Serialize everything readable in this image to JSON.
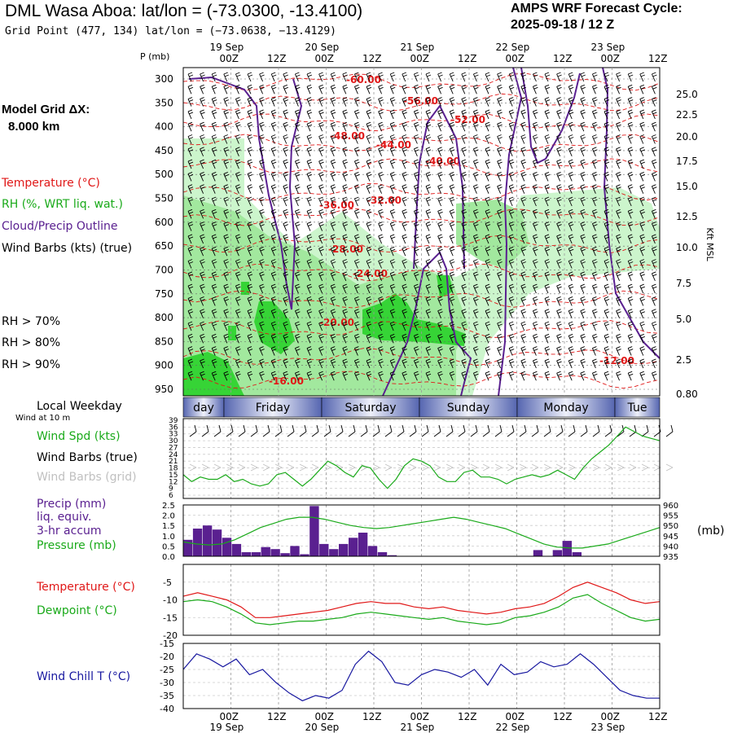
{
  "header": {
    "title": "DML Wasa Aboa:  lat/lon = (-73.0300, -13.4100)",
    "grid_point": "Grid Point (477, 134) lat/lon = (−73.0638, −13.4129)",
    "cycle_line1": "AMPS WRF Forecast Cycle:",
    "cycle_line2": "2025-09-18 / 12  Z"
  },
  "model_grid": {
    "line1": "Model Grid ΔX:",
    "line2": "8.000 km"
  },
  "profile_legend": {
    "temperature": "Temperature (°C)",
    "rh": "RH (%, WRT liq. wat.)",
    "cloud": "Cloud/Precip Outline",
    "wind": "Wind Barbs (kts) (true)",
    "rh_levels": [
      "RH > 70%",
      "RH > 80%",
      "RH > 90%"
    ]
  },
  "colors": {
    "temperature": "#e01818",
    "rh70": "#ccf5cc",
    "rh80": "#a2e89e",
    "rh90": "#36d436",
    "cloud": "#5a2090",
    "precip": "#5a2090",
    "pressure": "#1aaa1a",
    "dewpoint": "#1aaa1a",
    "windchill": "#1818a0",
    "wind_grid": "#c0c0c0",
    "day_band": "#5565b0"
  },
  "time_axis": {
    "top_hours": [
      "00Z",
      "12Z",
      "00Z",
      "12Z",
      "00Z",
      "12Z",
      "00Z",
      "12Z",
      "00Z",
      "12Z"
    ],
    "top_dates": [
      "19 Sep",
      "20 Sep",
      "21 Sep",
      "22 Sep",
      "23 Sep"
    ],
    "bottom_hours": [
      "00Z",
      "12Z",
      "00Z",
      "12Z",
      "00Z",
      "12Z",
      "00Z",
      "12Z",
      "00Z",
      "12Z"
    ],
    "bottom_dates": [
      "19 Sep",
      "20 Sep",
      "21 Sep",
      "22 Sep",
      "23 Sep"
    ],
    "start": "2025-09-18 12Z",
    "end": "2025-09-23 12Z"
  },
  "chart_data": [
    {
      "type": "heatmap",
      "title": "",
      "ylabel": "P (mb)",
      "y2label": "Kft MSL",
      "pressure_ticks": [
        300,
        350,
        400,
        450,
        500,
        550,
        600,
        650,
        700,
        750,
        800,
        850,
        900,
        950
      ],
      "height_ticks": [
        "25.0",
        "22.5",
        "20.0",
        "17.5",
        "15.0",
        "12.5",
        "10.0",
        "7.5",
        "5.0",
        "2.5",
        "0.80"
      ],
      "temperature_labels": [
        "-60.00",
        "-56.00",
        "-52.00",
        "-48.00",
        "-44.00",
        "-40.00",
        "-36.00",
        "-32.00",
        "-28.00",
        "-24.00",
        "-20.00",
        "-16.00",
        "-12.00"
      ]
    },
    {
      "type": "table",
      "label": "Local Weekday",
      "days": [
        "day",
        "Friday",
        "Saturday",
        "Sunday",
        "Monday",
        "Tue"
      ]
    },
    {
      "type": "line",
      "subtitle": "Wind at 10 m",
      "legend": [
        "Wind Spd (kts)",
        "Wind Barbs (true)",
        "Wind Barbs (grid)"
      ],
      "y_ticks": [
        6,
        9,
        12,
        15,
        18,
        21,
        24,
        27,
        30,
        33,
        36,
        39
      ],
      "ylim": [
        6,
        39
      ],
      "series": [
        {
          "values": [
            15,
            12,
            14,
            13,
            13,
            15,
            12,
            13,
            11,
            10,
            11,
            15,
            16,
            13,
            10,
            13,
            17,
            21,
            19,
            16,
            14,
            19,
            18,
            13,
            9,
            13,
            19,
            22,
            21,
            19,
            14,
            12,
            12,
            16,
            17,
            14,
            14,
            13,
            11,
            13,
            14,
            15,
            14,
            15,
            17,
            15,
            13,
            18,
            22,
            25,
            28,
            32,
            36,
            34,
            32,
            31,
            30
          ]
        }
      ]
    },
    {
      "type": "bar",
      "legend": [
        "Precip (mm)",
        "liq. equiv.",
        "3-hr accum",
        "Pressure (mb)"
      ],
      "y_ticks": [
        0.0,
        0.5,
        1.0,
        1.5,
        2.0,
        2.5
      ],
      "ylim": [
        0,
        2.5
      ],
      "y2_ticks": [
        935,
        940,
        945,
        950,
        955,
        960
      ],
      "y2lim": [
        935,
        960
      ],
      "y2label": "(mb)",
      "precip": [
        0.8,
        1.35,
        1.5,
        1.3,
        0.9,
        0.6,
        0.2,
        0.2,
        0.45,
        0.35,
        0.15,
        0.5,
        0.1,
        2.45,
        0.6,
        0.35,
        0.6,
        0.9,
        1.15,
        0.5,
        0.2,
        0.05,
        0.02,
        0.0,
        0.0,
        0.0,
        0.0,
        0.0,
        0.0,
        0.0,
        0.0,
        0.0,
        0.0,
        0.0,
        0.0,
        0.0,
        0.3,
        0.0,
        0.3,
        0.75,
        0.2,
        0.0,
        0.0,
        0.0,
        0.0,
        0.0,
        0.0,
        0.0,
        0.0
      ],
      "pressure": [
        942,
        941,
        940.5,
        941,
        943,
        946,
        949,
        951,
        953,
        954,
        954,
        953,
        951.5,
        950,
        949,
        948.5,
        949,
        950,
        951,
        952,
        953,
        954,
        953,
        951.5,
        950,
        948.5,
        946,
        943.5,
        941,
        939.5,
        939,
        939,
        940,
        941,
        943,
        945,
        947,
        949
      ]
    },
    {
      "type": "line",
      "legend": [
        "Temperature (°C)",
        "Dewpoint (°C)"
      ],
      "y_ticks": [
        -20,
        -15,
        -10,
        -5
      ],
      "ylim": [
        -20,
        0
      ],
      "series": [
        {
          "name": "Temperature (°C)",
          "values": [
            -9,
            -8,
            -9,
            -10,
            -12,
            -15,
            -15,
            -14.5,
            -14,
            -13.5,
            -13,
            -12,
            -11,
            -10.5,
            -11,
            -11,
            -12,
            -12.5,
            -12,
            -13,
            -13.5,
            -14,
            -13.5,
            -12.5,
            -12,
            -11,
            -9,
            -6.5,
            -5,
            -6.5,
            -8,
            -10,
            -11,
            -10.5
          ]
        },
        {
          "name": "Dewpoint (°C)",
          "values": [
            -10.5,
            -10,
            -10.5,
            -12,
            -14,
            -16.5,
            -17,
            -16.5,
            -16,
            -16,
            -15.5,
            -15,
            -14,
            -13.5,
            -14,
            -14.5,
            -15,
            -15.5,
            -15,
            -16,
            -16.5,
            -17,
            -16.5,
            -15,
            -14.5,
            -13.5,
            -12,
            -9.5,
            -8.5,
            -11,
            -13,
            -15,
            -16,
            -15.5
          ]
        }
      ]
    },
    {
      "type": "line",
      "legend": [
        "Wind Chill T (°C)"
      ],
      "y_ticks": [
        -40,
        -35,
        -30,
        -25,
        -20,
        -15
      ],
      "ylim": [
        -40,
        -15
      ],
      "series": [
        {
          "name": "Wind Chill T (°C)",
          "values": [
            -25,
            -19,
            -21,
            -24,
            -21,
            -27,
            -25,
            -30,
            -34,
            -37,
            -35,
            -36,
            -33,
            -23,
            -18,
            -22,
            -30,
            -31,
            -27,
            -25,
            -26,
            -28,
            -25,
            -31,
            -23,
            -27,
            -26,
            -22,
            -24,
            -23,
            -19,
            -23,
            -28,
            -33,
            -35,
            -36,
            -36
          ]
        }
      ]
    }
  ]
}
